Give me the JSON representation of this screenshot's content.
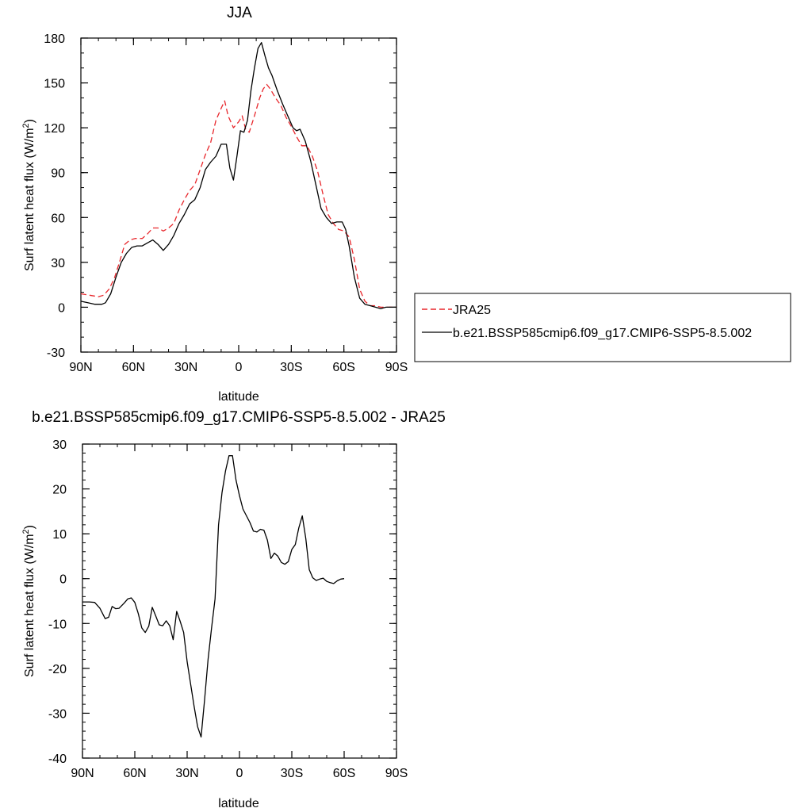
{
  "chart_data": [
    {
      "type": "line",
      "title": "JJA",
      "xlabel": "latitude",
      "ylabel": "Surf latent heat flux (W/m²)",
      "ylabel_main": "Surf latent heat flux (W/m",
      "ylabel_sup": "2",
      "ylabel_end": ")",
      "xlim": [
        -90,
        90
      ],
      "ylim": [
        -30,
        180
      ],
      "xticks": [
        {
          "value": -90,
          "label": "90N"
        },
        {
          "value": -60,
          "label": "60N"
        },
        {
          "value": -30,
          "label": "30N"
        },
        {
          "value": 0,
          "label": "0"
        },
        {
          "value": 30,
          "label": "30S"
        },
        {
          "value": 60,
          "label": "60S"
        },
        {
          "value": 90,
          "label": "90S"
        }
      ],
      "yticks": [
        -30,
        0,
        30,
        60,
        90,
        120,
        150,
        180
      ],
      "grid": false,
      "legend": "right",
      "series": [
        {
          "name": "JRA25",
          "color": "#e8262b",
          "dash": "dashed",
          "points": [
            [
              -90,
              9
            ],
            [
              -85,
              8
            ],
            [
              -80,
              7
            ],
            [
              -77,
              8
            ],
            [
              -74,
              12
            ],
            [
              -71,
              19
            ],
            [
              -68,
              30
            ],
            [
              -65,
              42
            ],
            [
              -62,
              45
            ],
            [
              -59,
              46
            ],
            [
              -55,
              46
            ],
            [
              -52,
              49
            ],
            [
              -49,
              53
            ],
            [
              -46,
              53
            ],
            [
              -43,
              51
            ],
            [
              -40,
              53
            ],
            [
              -37,
              56
            ],
            [
              -34,
              65
            ],
            [
              -31,
              72
            ],
            [
              -28,
              78
            ],
            [
              -25,
              82
            ],
            [
              -22,
              92
            ],
            [
              -19,
              102
            ],
            [
              -16,
              110
            ],
            [
              -13,
              125
            ],
            [
              -10,
              133
            ],
            [
              -8,
              138
            ],
            [
              -6,
              128
            ],
            [
              -3,
              120
            ],
            [
              0,
              124
            ],
            [
              2,
              128
            ],
            [
              4,
              119
            ],
            [
              6,
              117
            ],
            [
              9,
              128
            ],
            [
              12,
              140
            ],
            [
              14,
              146
            ],
            [
              16,
              149
            ],
            [
              18,
              146
            ],
            [
              21,
              140
            ],
            [
              24,
              135
            ],
            [
              27,
              127
            ],
            [
              30,
              121
            ],
            [
              33,
              114
            ],
            [
              36,
              108
            ],
            [
              39,
              108
            ],
            [
              42,
              101
            ],
            [
              45,
              91
            ],
            [
              48,
              76
            ],
            [
              51,
              62
            ],
            [
              54,
              56
            ],
            [
              57,
              52
            ],
            [
              60,
              51
            ],
            [
              63,
              47
            ],
            [
              66,
              32
            ],
            [
              69,
              12
            ],
            [
              72,
              4
            ],
            [
              75,
              1
            ],
            [
              78,
              1
            ],
            [
              81,
              0
            ],
            [
              84,
              0
            ],
            [
              87,
              0
            ],
            [
              90,
              0
            ]
          ]
        },
        {
          "name": "b.e21.BSSP585cmip6.f09_g17.CMIP6-SSP5-8.5.002",
          "color": "#000000",
          "dash": "solid",
          "points": [
            [
              -90,
              4
            ],
            [
              -86,
              3
            ],
            [
              -82,
              2
            ],
            [
              -78,
              2
            ],
            [
              -76,
              3
            ],
            [
              -73,
              9
            ],
            [
              -70,
              20
            ],
            [
              -67,
              30
            ],
            [
              -64,
              36
            ],
            [
              -61,
              40
            ],
            [
              -58,
              41
            ],
            [
              -55,
              41
            ],
            [
              -52,
              43
            ],
            [
              -49,
              45
            ],
            [
              -46,
              42
            ],
            [
              -43,
              38
            ],
            [
              -40,
              42
            ],
            [
              -37,
              48
            ],
            [
              -34,
              56
            ],
            [
              -31,
              62
            ],
            [
              -28,
              69
            ],
            [
              -25,
              72
            ],
            [
              -22,
              80
            ],
            [
              -19,
              92
            ],
            [
              -16,
              97
            ],
            [
              -13,
              101
            ],
            [
              -10,
              109
            ],
            [
              -7,
              109
            ],
            [
              -5,
              93
            ],
            [
              -3,
              85
            ],
            [
              -1,
              101
            ],
            [
              1,
              118
            ],
            [
              3,
              117
            ],
            [
              5,
              125
            ],
            [
              7,
              145
            ],
            [
              9,
              160
            ],
            [
              11,
              173
            ],
            [
              13,
              177
            ],
            [
              15,
              168
            ],
            [
              17,
              160
            ],
            [
              19,
              155
            ],
            [
              22,
              145
            ],
            [
              25,
              136
            ],
            [
              28,
              128
            ],
            [
              31,
              120
            ],
            [
              33,
              118
            ],
            [
              35,
              119
            ],
            [
              38,
              111
            ],
            [
              41,
              98
            ],
            [
              44,
              82
            ],
            [
              47,
              66
            ],
            [
              50,
              60
            ],
            [
              53,
              56
            ],
            [
              56,
              57
            ],
            [
              59,
              57
            ],
            [
              61,
              52
            ],
            [
              63,
              41
            ],
            [
              66,
              20
            ],
            [
              69,
              6
            ],
            [
              72,
              2
            ],
            [
              75,
              1
            ],
            [
              78,
              0
            ],
            [
              81,
              -1
            ],
            [
              84,
              0
            ],
            [
              87,
              0
            ],
            [
              90,
              0
            ]
          ]
        }
      ]
    },
    {
      "type": "line",
      "title": "b.e21.BSSP585cmip6.f09_g17.CMIP6-SSP5-8.5.002 - JRA25",
      "xlabel": "latitude",
      "ylabel": "Surf latent heat flux (W/m²)",
      "ylabel_main": "Surf latent heat flux (W/m",
      "ylabel_sup": "2",
      "ylabel_end": ")",
      "xlim": [
        -90,
        90
      ],
      "ylim": [
        -40,
        30
      ],
      "xticks": [
        {
          "value": -90,
          "label": "90N"
        },
        {
          "value": -60,
          "label": "60N"
        },
        {
          "value": -30,
          "label": "30N"
        },
        {
          "value": 0,
          "label": "0"
        },
        {
          "value": 30,
          "label": "30S"
        },
        {
          "value": 60,
          "label": "60S"
        },
        {
          "value": 90,
          "label": "90S"
        }
      ],
      "yticks": [
        -40,
        -30,
        -20,
        -10,
        0,
        10,
        20,
        30
      ],
      "grid": false,
      "series": [
        {
          "color": "#000000",
          "dash": "solid",
          "points": [
            [
              -90,
              -5.2
            ],
            [
              -86,
              -5.2
            ],
            [
              -83,
              -5.3
            ],
            [
              -80,
              -6.6
            ],
            [
              -77,
              -8.9
            ],
            [
              -75,
              -8.6
            ],
            [
              -73,
              -6.2
            ],
            [
              -71,
              -6.7
            ],
            [
              -69,
              -6.6
            ],
            [
              -66,
              -5.4
            ],
            [
              -64,
              -4.5
            ],
            [
              -62,
              -4.3
            ],
            [
              -60,
              -5.3
            ],
            [
              -58,
              -7.8
            ],
            [
              -56,
              -11.0
            ],
            [
              -54,
              -12.0
            ],
            [
              -52,
              -10.6
            ],
            [
              -50,
              -6.4
            ],
            [
              -48,
              -8.3
            ],
            [
              -46,
              -10.3
            ],
            [
              -44,
              -10.5
            ],
            [
              -42,
              -9.4
            ],
            [
              -40,
              -10.5
            ],
            [
              -38,
              -13.6
            ],
            [
              -36,
              -7.3
            ],
            [
              -34,
              -9.5
            ],
            [
              -32,
              -12.0
            ],
            [
              -30,
              -18.5
            ],
            [
              -28,
              -23.5
            ],
            [
              -26,
              -28.5
            ],
            [
              -24,
              -33.0
            ],
            [
              -22,
              -35.3
            ],
            [
              -20,
              -27.0
            ],
            [
              -18,
              -18.0
            ],
            [
              -16,
              -11.0
            ],
            [
              -14,
              -4.5
            ],
            [
              -12,
              12.0
            ],
            [
              -10,
              19.2
            ],
            [
              -8,
              24.0
            ],
            [
              -6,
              27.4
            ],
            [
              -4,
              27.4
            ],
            [
              -2,
              22.0
            ],
            [
              0,
              18.5
            ],
            [
              2,
              15.5
            ],
            [
              4,
              14.0
            ],
            [
              6,
              12.5
            ],
            [
              8,
              10.6
            ],
            [
              10,
              10.4
            ],
            [
              12,
              11.0
            ],
            [
              14,
              10.8
            ],
            [
              16,
              8.6
            ],
            [
              18,
              4.5
            ],
            [
              20,
              5.7
            ],
            [
              22,
              5.0
            ],
            [
              24,
              3.6
            ],
            [
              26,
              3.2
            ],
            [
              28,
              3.8
            ],
            [
              30,
              6.5
            ],
            [
              32,
              7.6
            ],
            [
              34,
              11.3
            ],
            [
              36,
              14.0
            ],
            [
              38,
              9.0
            ],
            [
              40,
              2.0
            ],
            [
              42,
              0.2
            ],
            [
              44,
              -0.4
            ],
            [
              46,
              -0.1
            ],
            [
              48,
              0.1
            ],
            [
              50,
              -0.6
            ],
            [
              52,
              -0.9
            ],
            [
              54,
              -1.1
            ],
            [
              56,
              -0.5
            ],
            [
              58,
              -0.1
            ],
            [
              60,
              0.0
            ]
          ]
        }
      ]
    }
  ]
}
